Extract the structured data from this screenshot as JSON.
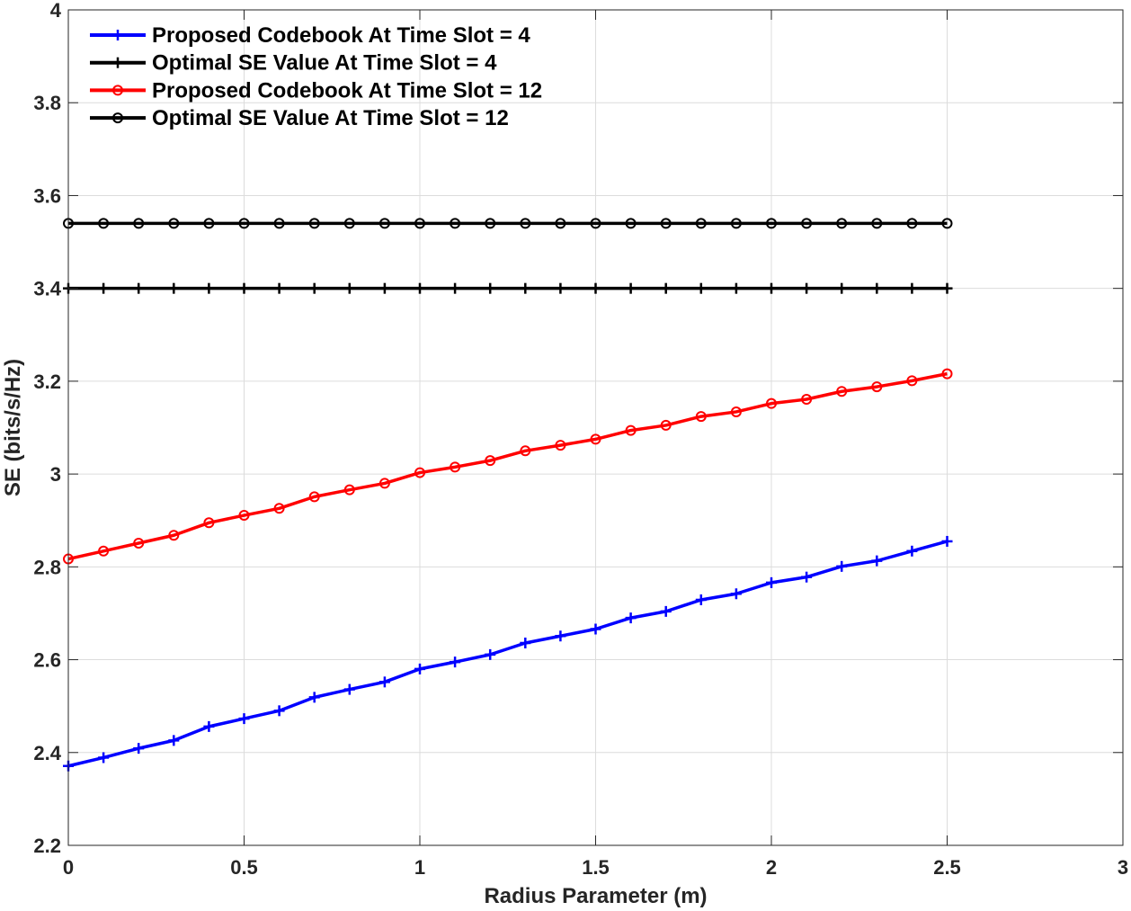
{
  "chart_data": {
    "type": "line",
    "xlabel": "Radius Parameter (m)",
    "ylabel": "SE (bits/s/Hz)",
    "xlim": [
      0,
      3
    ],
    "ylim": [
      2.2,
      4
    ],
    "x_ticks": [
      0,
      0.5,
      1,
      1.5,
      2,
      2.5,
      3
    ],
    "x_tick_labels": [
      "0",
      "0.5",
      "1",
      "1.5",
      "2",
      "2.5",
      "3"
    ],
    "y_ticks": [
      2.2,
      2.4,
      2.6,
      2.8,
      3.0,
      3.2,
      3.4,
      3.6,
      3.8,
      4.0
    ],
    "y_tick_labels": [
      "2.2",
      "2.4",
      "2.6",
      "2.8",
      "3",
      "3.2",
      "3.4",
      "3.6",
      "3.8",
      "4"
    ],
    "grid": true,
    "legend_position": "top-left",
    "x": [
      0,
      0.1,
      0.2,
      0.3,
      0.4,
      0.5,
      0.6,
      0.7,
      0.8,
      0.9,
      1.0,
      1.1,
      1.2,
      1.3,
      1.4,
      1.5,
      1.6,
      1.7,
      1.8,
      1.9,
      2.0,
      2.1,
      2.2,
      2.3,
      2.4,
      2.5
    ],
    "series": [
      {
        "name": "Proposed Codebook At Time Slot = 4",
        "color": "#0000ff",
        "marker": "plus",
        "values": [
          2.371,
          2.389,
          2.409,
          2.426,
          2.456,
          2.473,
          2.49,
          2.519,
          2.536,
          2.552,
          2.58,
          2.595,
          2.611,
          2.636,
          2.651,
          2.666,
          2.69,
          2.704,
          2.729,
          2.742,
          2.766,
          2.778,
          2.801,
          2.813,
          2.834,
          2.855
        ]
      },
      {
        "name": "Optimal SE Value At Time Slot = 4",
        "color": "#000000",
        "marker": "plus",
        "values": [
          3.4,
          3.4,
          3.4,
          3.4,
          3.4,
          3.4,
          3.4,
          3.4,
          3.4,
          3.4,
          3.4,
          3.4,
          3.4,
          3.4,
          3.4,
          3.4,
          3.4,
          3.4,
          3.4,
          3.4,
          3.4,
          3.4,
          3.4,
          3.4,
          3.4,
          3.4
        ]
      },
      {
        "name": "Proposed Codebook At Time Slot = 12",
        "color": "#ff0000",
        "marker": "circle",
        "values": [
          2.817,
          2.834,
          2.851,
          2.868,
          2.895,
          2.911,
          2.926,
          2.951,
          2.966,
          2.98,
          3.003,
          3.015,
          3.029,
          3.05,
          3.062,
          3.075,
          3.094,
          3.105,
          3.124,
          3.134,
          3.152,
          3.161,
          3.178,
          3.188,
          3.201,
          3.216
        ]
      },
      {
        "name": "Optimal SE Value At Time Slot = 12",
        "color": "#000000",
        "marker": "circle",
        "values": [
          3.54,
          3.54,
          3.54,
          3.54,
          3.54,
          3.54,
          3.54,
          3.54,
          3.54,
          3.54,
          3.54,
          3.54,
          3.54,
          3.54,
          3.54,
          3.54,
          3.54,
          3.54,
          3.54,
          3.54,
          3.54,
          3.54,
          3.54,
          3.54,
          3.54,
          3.54
        ]
      }
    ]
  }
}
